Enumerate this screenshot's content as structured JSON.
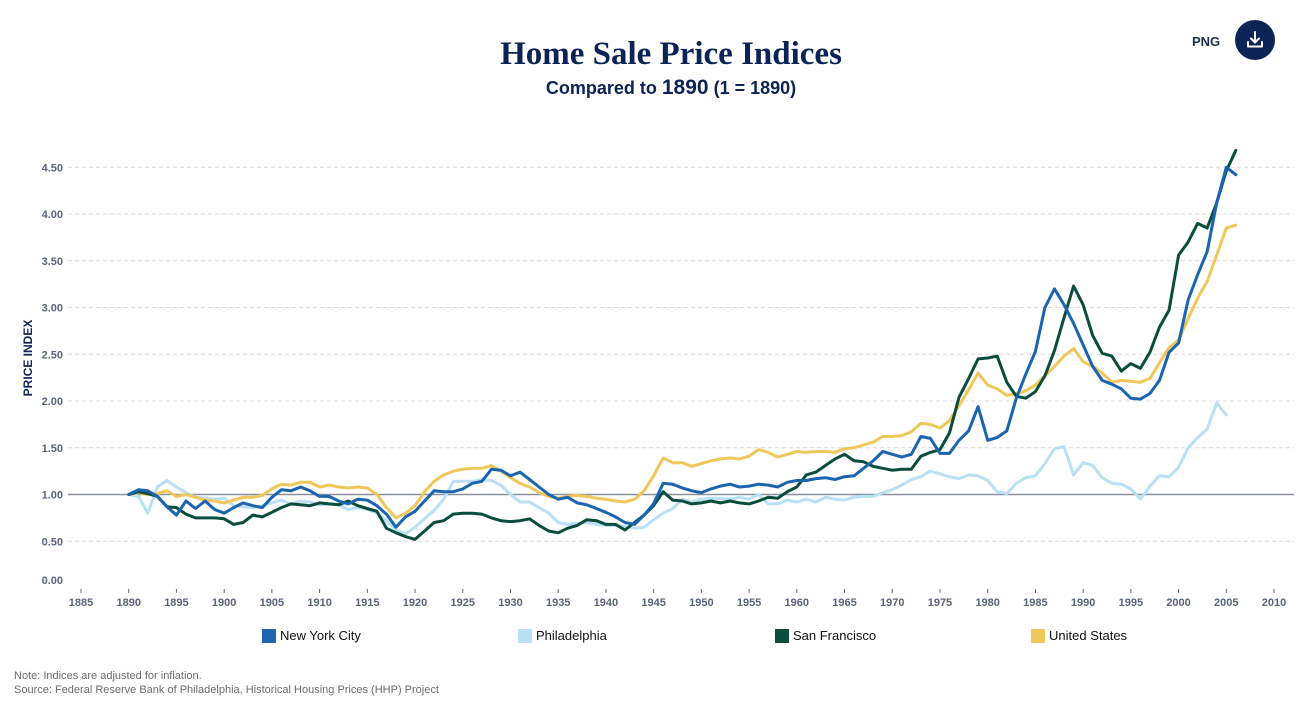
{
  "header": {
    "title": "Home Sale Price Indices",
    "subtitle_prefix": "Compared to ",
    "subtitle_year": "1890",
    "subtitle_suffix": " (1 = 1890)",
    "export_label": "PNG",
    "download_icon": "download-icon"
  },
  "footer": {
    "note": "Note: Indices are adjusted for inflation.",
    "source": "Source: Federal Reserve Bank of Philadelphia, Historical Housing Prices (HHP) Project"
  },
  "chart_data": {
    "type": "line",
    "title": "Home Sale Price Indices",
    "subtitle": "Compared to 1890 (1 = 1890)",
    "xlabel": "",
    "ylabel": "PRICE INDEX",
    "xlim": [
      1885,
      2010
    ],
    "ylim": [
      0,
      4.5
    ],
    "x_ticks": [
      "1885",
      "1890",
      "1895",
      "1900",
      "1905",
      "1910",
      "1915",
      "1920",
      "1925",
      "1930",
      "1935",
      "1940",
      "1945",
      "1950",
      "1955",
      "1960",
      "1965",
      "1970",
      "1975",
      "1980",
      "1985",
      "1990",
      "1995",
      "2000",
      "2005",
      "2010"
    ],
    "y_ticks": [
      "0.00",
      "0.50",
      "1.00",
      "1.50",
      "2.00",
      "2.50",
      "3.00",
      "3.50",
      "4.00",
      "4.50"
    ],
    "reference_line": 1.0,
    "grid": "horizontal dashed",
    "legend_position": "bottom",
    "x_start": 1890,
    "series": [
      {
        "name": "New York City",
        "color": "#1b64b0",
        "values": [
          1.0,
          1.05,
          1.04,
          0.98,
          0.87,
          0.78,
          0.93,
          0.85,
          0.93,
          0.84,
          0.8,
          0.86,
          0.91,
          0.88,
          0.86,
          0.97,
          1.05,
          1.04,
          1.08,
          1.04,
          0.98,
          0.98,
          0.93,
          0.9,
          0.95,
          0.94,
          0.88,
          0.79,
          0.65,
          0.76,
          0.82,
          0.93,
          1.04,
          1.03,
          1.03,
          1.06,
          1.12,
          1.14,
          1.27,
          1.26,
          1.2,
          1.24,
          1.16,
          1.08,
          1.0,
          0.95,
          0.97,
          0.91,
          0.89,
          0.85,
          0.81,
          0.76,
          0.7,
          0.68,
          0.78,
          0.9,
          1.12,
          1.11,
          1.07,
          1.04,
          1.02,
          1.06,
          1.09,
          1.11,
          1.08,
          1.09,
          1.11,
          1.1,
          1.08,
          1.13,
          1.15,
          1.15,
          1.17,
          1.18,
          1.16,
          1.19,
          1.2,
          1.28,
          1.36,
          1.46,
          1.43,
          1.4,
          1.43,
          1.62,
          1.6,
          1.44,
          1.44,
          1.58,
          1.68,
          1.94,
          1.58,
          1.61,
          1.68,
          2.03,
          2.29,
          2.53,
          3.0,
          3.2,
          3.03,
          2.83,
          2.6,
          2.37,
          2.22,
          2.18,
          2.13,
          2.03,
          2.02,
          2.08,
          2.22,
          2.52,
          2.62,
          3.08,
          3.35,
          3.6,
          4.12,
          4.5,
          4.42
        ]
      },
      {
        "name": "Philadelphia",
        "color": "#b9e0f5",
        "values": [
          1.0,
          0.98,
          0.8,
          1.08,
          1.15,
          1.08,
          1.02,
          0.97,
          0.96,
          0.95,
          0.96,
          0.88,
          0.87,
          0.86,
          0.88,
          0.91,
          0.94,
          0.9,
          0.93,
          0.92,
          0.89,
          0.9,
          0.89,
          0.84,
          0.86,
          0.84,
          0.8,
          0.72,
          0.62,
          0.58,
          0.65,
          0.74,
          0.83,
          0.95,
          1.14,
          1.14,
          1.14,
          1.16,
          1.15,
          1.1,
          1.0,
          0.92,
          0.92,
          0.86,
          0.8,
          0.7,
          0.68,
          0.69,
          0.7,
          0.68,
          0.67,
          0.67,
          0.66,
          0.64,
          0.65,
          0.73,
          0.8,
          0.85,
          0.95,
          0.92,
          0.95,
          0.96,
          0.96,
          0.95,
          0.97,
          0.95,
          1.0,
          0.9,
          0.9,
          0.94,
          0.92,
          0.95,
          0.92,
          0.97,
          0.95,
          0.94,
          0.97,
          0.98,
          0.98,
          1.02,
          1.05,
          1.1,
          1.16,
          1.19,
          1.25,
          1.22,
          1.19,
          1.17,
          1.21,
          1.2,
          1.15,
          1.03,
          1.01,
          1.12,
          1.18,
          1.2,
          1.33,
          1.49,
          1.51,
          1.21,
          1.34,
          1.31,
          1.18,
          1.12,
          1.11,
          1.06,
          0.95,
          1.09,
          1.2,
          1.19,
          1.29,
          1.5,
          1.61,
          1.7,
          1.98,
          1.85
        ]
      },
      {
        "name": "San Francisco",
        "color": "#0a4d3c",
        "values": [
          1.0,
          1.03,
          1.01,
          0.98,
          0.87,
          0.86,
          0.79,
          0.75,
          0.75,
          0.75,
          0.74,
          0.68,
          0.7,
          0.78,
          0.76,
          0.81,
          0.86,
          0.9,
          0.89,
          0.88,
          0.91,
          0.9,
          0.89,
          0.93,
          0.88,
          0.85,
          0.82,
          0.64,
          0.59,
          0.55,
          0.52,
          0.61,
          0.7,
          0.72,
          0.79,
          0.8,
          0.8,
          0.79,
          0.75,
          0.72,
          0.71,
          0.72,
          0.74,
          0.67,
          0.61,
          0.59,
          0.64,
          0.67,
          0.73,
          0.72,
          0.68,
          0.68,
          0.62,
          0.7,
          0.78,
          0.88,
          1.03,
          0.94,
          0.93,
          0.9,
          0.91,
          0.93,
          0.91,
          0.93,
          0.91,
          0.9,
          0.93,
          0.97,
          0.96,
          1.03,
          1.08,
          1.21,
          1.24,
          1.31,
          1.38,
          1.43,
          1.36,
          1.35,
          1.3,
          1.28,
          1.26,
          1.27,
          1.27,
          1.41,
          1.45,
          1.48,
          1.66,
          2.04,
          2.24,
          2.45,
          2.46,
          2.48,
          2.2,
          2.05,
          2.03,
          2.1,
          2.27,
          2.54,
          2.89,
          3.23,
          3.03,
          2.7,
          2.51,
          2.48,
          2.32,
          2.4,
          2.35,
          2.52,
          2.79,
          2.97,
          3.56,
          3.7,
          3.9,
          3.85,
          4.12,
          4.46,
          4.68
        ]
      },
      {
        "name": "United States",
        "color": "#f0c75a",
        "values": [
          1.0,
          1.02,
          1.0,
          1.01,
          1.04,
          0.98,
          1.0,
          0.97,
          0.94,
          0.93,
          0.91,
          0.94,
          0.97,
          0.97,
          0.99,
          1.06,
          1.11,
          1.1,
          1.13,
          1.13,
          1.08,
          1.1,
          1.08,
          1.07,
          1.08,
          1.07,
          1.0,
          0.86,
          0.75,
          0.8,
          0.88,
          1.03,
          1.14,
          1.21,
          1.25,
          1.27,
          1.28,
          1.28,
          1.31,
          1.25,
          1.18,
          1.12,
          1.08,
          1.02,
          0.98,
          0.96,
          0.98,
          0.99,
          0.98,
          0.96,
          0.95,
          0.93,
          0.92,
          0.95,
          1.04,
          1.2,
          1.39,
          1.34,
          1.34,
          1.3,
          1.33,
          1.36,
          1.38,
          1.39,
          1.38,
          1.41,
          1.48,
          1.45,
          1.4,
          1.43,
          1.46,
          1.45,
          1.46,
          1.46,
          1.45,
          1.49,
          1.5,
          1.53,
          1.56,
          1.62,
          1.62,
          1.63,
          1.67,
          1.76,
          1.75,
          1.71,
          1.79,
          1.95,
          2.12,
          2.3,
          2.17,
          2.13,
          2.06,
          2.08,
          2.11,
          2.17,
          2.27,
          2.37,
          2.48,
          2.56,
          2.42,
          2.37,
          2.3,
          2.2,
          2.22,
          2.21,
          2.2,
          2.24,
          2.41,
          2.57,
          2.65,
          2.88,
          3.1,
          3.28,
          3.56,
          3.85,
          3.88
        ]
      }
    ]
  }
}
